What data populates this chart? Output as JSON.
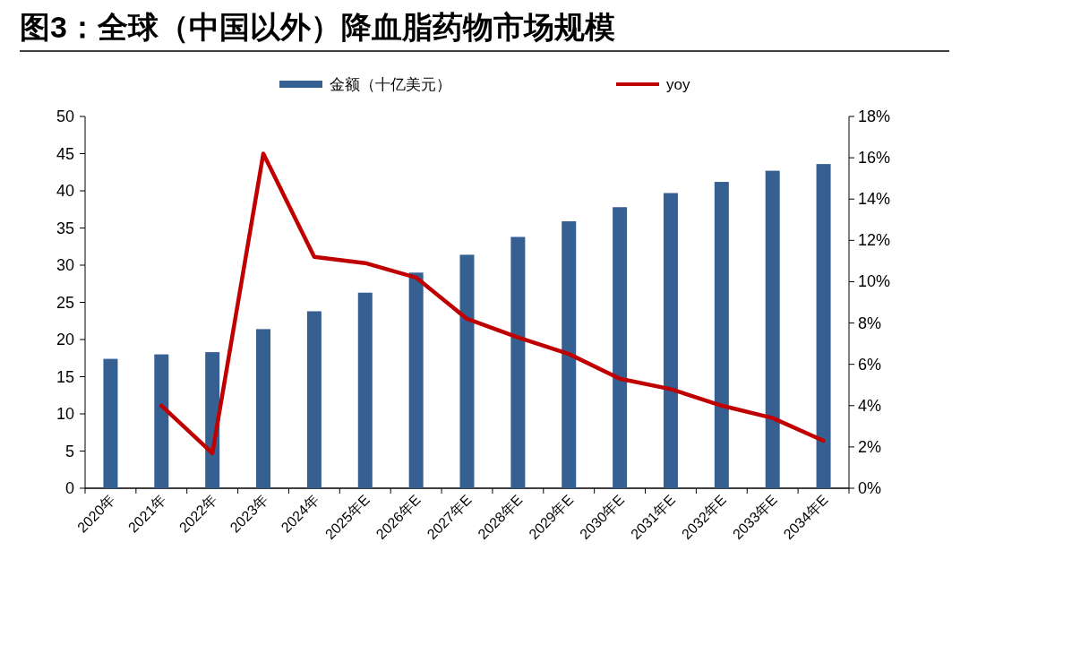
{
  "chart_data": {
    "type": "bar",
    "title": "图3：全球（中国以外）降血脂药物市场规模",
    "categories": [
      "2020年",
      "2021年",
      "2022年",
      "2023年",
      "2024年",
      "2025年E",
      "2026年E",
      "2027年E",
      "2028年E",
      "2029年E",
      "2030年E",
      "2031年E",
      "2032年E",
      "2033年E",
      "2034年E"
    ],
    "series": [
      {
        "name": "金额（十亿美元）",
        "color": "#376092",
        "values": [
          17.4,
          18.0,
          18.3,
          21.4,
          23.8,
          26.3,
          29.0,
          31.4,
          33.8,
          35.9,
          37.8,
          39.7,
          41.2,
          42.7,
          43.6
        ]
      },
      {
        "name": "yoy",
        "type": "line",
        "axis": "y2",
        "color": "#c00000",
        "values": [
          null,
          4.0,
          1.7,
          16.2,
          11.2,
          10.9,
          10.2,
          8.2,
          7.3,
          6.5,
          5.3,
          4.8,
          4.0,
          3.4,
          2.3
        ]
      }
    ],
    "ylim": [
      0,
      50
    ],
    "yticks": [
      0,
      5,
      10,
      15,
      20,
      25,
      30,
      35,
      40,
      45,
      50
    ],
    "y2lim": [
      0,
      18
    ],
    "y2ticks": [
      {
        "value": 0,
        "label": "0%"
      },
      {
        "value": 2,
        "label": "2%"
      },
      {
        "value": 4,
        "label": "4%"
      },
      {
        "value": 6,
        "label": "6%"
      },
      {
        "value": 8,
        "label": "8%"
      },
      {
        "value": 10,
        "label": "10%"
      },
      {
        "value": 12,
        "label": "12%"
      },
      {
        "value": 14,
        "label": "14%"
      },
      {
        "value": 16,
        "label": "16%"
      },
      {
        "value": 18,
        "label": "18%"
      }
    ],
    "grid": false,
    "legend": "top",
    "marker": "none"
  }
}
